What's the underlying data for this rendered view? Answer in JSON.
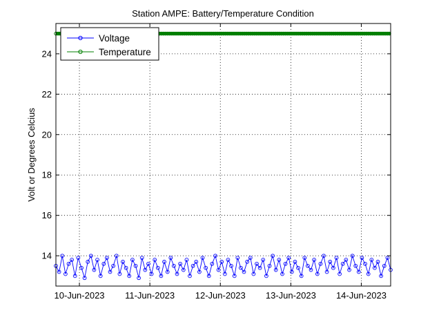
{
  "chart_data": {
    "type": "line",
    "title": "Station AMPE: Battery/Temperature Condition",
    "xlabel": "",
    "ylabel": "Volt or Degrees Celcius",
    "x_range": [
      "2023-06-09T16:00",
      "2023-06-14T10:00"
    ],
    "ylim": [
      12.5,
      25.5
    ],
    "yticks": [
      14,
      16,
      18,
      20,
      22,
      24
    ],
    "xticks": [
      {
        "date": "2023-06-10",
        "label": "10-Jun-2023"
      },
      {
        "date": "2023-06-11",
        "label": "11-Jun-2023"
      },
      {
        "date": "2023-06-12",
        "label": "12-Jun-2023"
      },
      {
        "date": "2023-06-13",
        "label": "13-Jun-2023"
      },
      {
        "date": "2023-06-14",
        "label": "14-Jun-2023"
      }
    ],
    "grid": true,
    "legend_position": "top-left",
    "series": [
      {
        "name": "Voltage",
        "color": "#0000ff",
        "marker": "circle",
        "x_start": "2023-06-09T16:00",
        "x_end": "2023-06-14T10:00",
        "values": [
          13.5,
          13.2,
          14.0,
          13.1,
          13.6,
          13.8,
          13.0,
          13.9,
          13.4,
          12.9,
          13.7,
          14.0,
          13.3,
          13.8,
          13.0,
          13.6,
          13.9,
          13.2,
          13.5,
          14.0,
          13.1,
          13.7,
          13.4,
          13.0,
          13.8,
          13.5,
          12.9,
          13.9,
          13.3,
          13.6,
          13.1,
          13.8,
          13.4,
          13.0,
          13.7,
          13.2,
          13.9,
          13.5,
          13.1,
          13.6,
          13.3,
          13.8,
          13.0,
          13.5,
          13.7,
          13.2,
          13.9,
          13.4,
          13.0,
          13.6,
          14.0,
          13.3,
          13.7,
          13.1,
          13.8,
          13.5,
          13.0,
          13.9,
          13.4,
          13.2,
          13.7,
          13.9,
          13.1,
          13.6,
          13.4,
          13.8,
          13.0,
          13.5,
          14.0,
          13.3,
          13.8,
          13.1,
          13.6,
          13.9,
          13.2,
          13.7,
          13.4,
          13.0,
          13.9,
          13.5,
          13.3,
          13.8,
          13.1,
          13.6,
          14.0,
          13.2,
          13.7,
          13.4,
          13.9,
          13.1,
          13.6,
          13.8,
          13.3,
          14.0,
          13.5,
          13.2,
          13.9,
          13.6,
          13.1,
          13.8,
          13.4,
          13.7,
          13.0,
          13.5,
          13.9,
          13.3
        ]
      },
      {
        "name": "Temperature",
        "color": "#007f00",
        "marker": "circle",
        "x_start": "2023-06-09T16:00",
        "x_end": "2023-06-14T10:00",
        "constant_value": 25
      }
    ]
  }
}
